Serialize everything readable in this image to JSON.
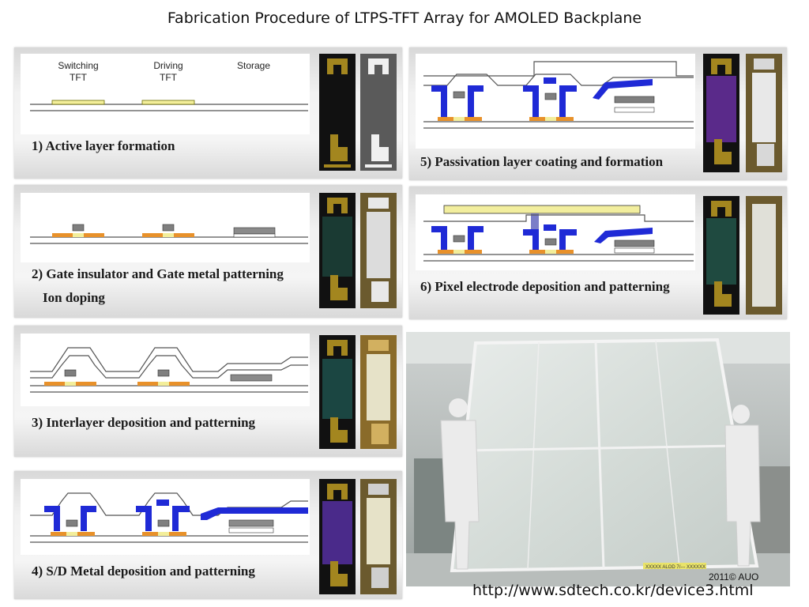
{
  "title": "Fabrication Procedure of LTPS-TFT Array for AMOLED Backplane",
  "labels": {
    "switching_line1": "Switching",
    "switching_line2": "TFT",
    "driving_line1": "Driving",
    "driving_line2": "TFT",
    "storage": "Storage"
  },
  "steps": [
    {
      "caption_line1": "1) Active layer formation"
    },
    {
      "caption_line1": "2) Gate insulator and Gate metal patterning",
      "caption_line2": "Ion doping"
    },
    {
      "caption_line1": "3) Interlayer deposition and patterning"
    },
    {
      "caption_line1": "4) S/D Metal deposition and patterning"
    },
    {
      "caption_line1": "5) Passivation layer coating and formation"
    },
    {
      "caption_line1": "6) Pixel electrode deposition and patterning"
    }
  ],
  "photo": {
    "copyright": "2011© AUO",
    "label_strip": "XXXXX  ALOD 7/---  XXXXXX"
  },
  "url": "http://www.sdtech.co.kr/device3.html",
  "colors": {
    "active": "#f3ee9a",
    "doped": "#e8912a",
    "gate": "#7f7f7f",
    "sd_metal": "#1f2ad6",
    "pixel_electrode": "#f2ee9e",
    "via": "#7b7ec8"
  }
}
